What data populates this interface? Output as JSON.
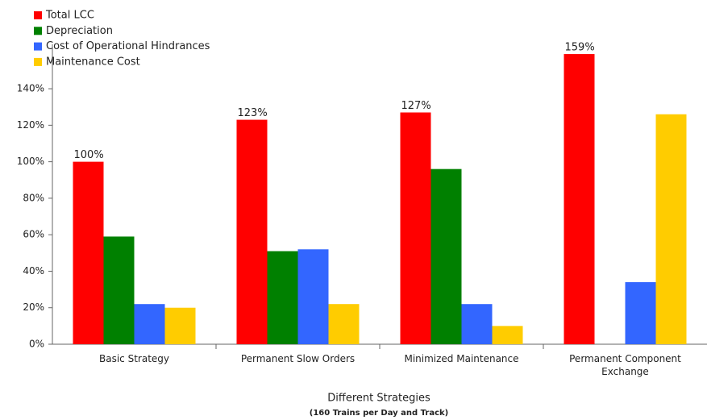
{
  "chart_data": {
    "type": "bar",
    "categories": [
      "Basic Strategy",
      "Permanent Slow Orders",
      "Minimized Maintenance",
      "Permanent Component Exchange"
    ],
    "series": [
      {
        "name": "Total LCC",
        "color": "#ff0000",
        "values": [
          100,
          123,
          127,
          159
        ],
        "value_labels": [
          "100%",
          "123%",
          "127%",
          "159%"
        ]
      },
      {
        "name": "Depreciation",
        "color": "#008000",
        "values": [
          59,
          51,
          96,
          null
        ]
      },
      {
        "name": "Cost of Operational Hindrances",
        "color": "#3366ff",
        "values": [
          22,
          52,
          22,
          34
        ]
      },
      {
        "name": "Maintenance Cost",
        "color": "#ffcc00",
        "values": [
          20,
          22,
          10,
          126
        ]
      }
    ],
    "xlabel": "Different Strategies",
    "xlabel_sub": "(160 Trains per Day and Track)",
    "ylim": [
      0,
      160
    ],
    "yticks": [
      {
        "value": 0,
        "label": "0%"
      },
      {
        "value": 20,
        "label": "20%"
      },
      {
        "value": 40,
        "label": "40%"
      },
      {
        "value": 60,
        "label": "60%"
      },
      {
        "value": 80,
        "label": "80%"
      },
      {
        "value": 100,
        "label": "100%"
      },
      {
        "value": 120,
        "label": "120%"
      },
      {
        "value": 140,
        "label": "140%"
      }
    ],
    "legend": "top-left",
    "grid": false
  }
}
